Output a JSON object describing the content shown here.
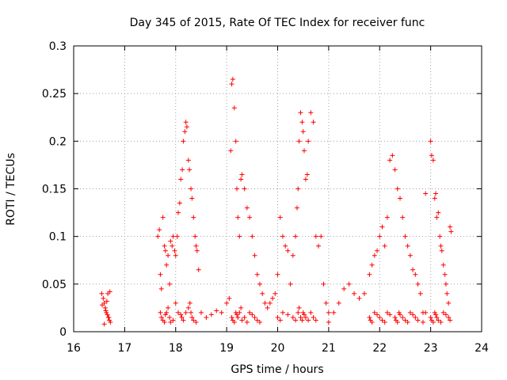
{
  "chart_data": {
    "type": "scatter",
    "title": "Day 345 of 2015, Rate Of TEC Index for receiver func",
    "xlabel": "GPS time / hours",
    "ylabel": "ROTI / TECUs",
    "xlim": [
      16,
      24
    ],
    "ylim": [
      0,
      0.3
    ],
    "x_ticks": [
      "16",
      "17",
      "18",
      "19",
      "20",
      "21",
      "22",
      "23",
      "24"
    ],
    "y_ticks": [
      "0",
      "0.05",
      "0.1",
      "0.15",
      "0.2",
      "0.25",
      "0.3"
    ],
    "grid": true,
    "marker": "plus",
    "color": "#ff0000",
    "series": [
      {
        "x": [
          16.55,
          16.58,
          16.6,
          16.62,
          16.64,
          16.66,
          16.68,
          16.7,
          16.72,
          16.6,
          16.63,
          16.67,
          16.71,
          16.56,
          16.65,
          16.69,
          17.65,
          17.68,
          17.7,
          17.72,
          17.75,
          17.78,
          17.8,
          17.82,
          17.85,
          17.88,
          17.9,
          17.93,
          17.95,
          17.98,
          18.0,
          18.03,
          18.05,
          18.08,
          18.1,
          18.13,
          18.15,
          18.18,
          18.2,
          18.22,
          18.25,
          18.27,
          18.3,
          18.32,
          18.35,
          18.38,
          18.4,
          18.42,
          18.45,
          17.7,
          17.72,
          17.75,
          17.78,
          17.8,
          17.82,
          17.85,
          17.88,
          17.9,
          17.95,
          18.0,
          18.05,
          18.1,
          18.12,
          18.15,
          18.2,
          18.25,
          18.28,
          18.3,
          18.32,
          18.35,
          18.4,
          18.5,
          18.6,
          18.7,
          18.8,
          18.9,
          19.0,
          19.05,
          19.08,
          19.1,
          19.12,
          19.15,
          19.18,
          19.2,
          19.22,
          19.25,
          19.28,
          19.3,
          19.35,
          19.4,
          19.45,
          19.5,
          19.55,
          19.6,
          19.65,
          19.7,
          19.75,
          19.8,
          19.85,
          19.9,
          19.1,
          19.12,
          19.15,
          19.18,
          19.2,
          19.22,
          19.25,
          19.28,
          19.3,
          19.35,
          19.4,
          19.45,
          19.5,
          19.55,
          19.6,
          19.65,
          19.95,
          20.0,
          20.05,
          20.1,
          20.15,
          20.2,
          20.25,
          20.3,
          20.35,
          20.38,
          20.4,
          20.42,
          20.45,
          20.48,
          20.5,
          20.52,
          20.55,
          20.58,
          20.6,
          20.65,
          20.7,
          20.75,
          20.8,
          20.85,
          20.9,
          20.95,
          21.0,
          20.0,
          20.05,
          20.1,
          20.2,
          20.3,
          20.35,
          20.4,
          20.42,
          20.45,
          20.48,
          20.5,
          20.52,
          20.55,
          20.6,
          20.65,
          20.7,
          20.75,
          21.0,
          21.1,
          21.2,
          21.3,
          21.4,
          21.5,
          21.6,
          21.7,
          21.8,
          21.85,
          21.9,
          21.95,
          22.0,
          22.05,
          22.1,
          22.15,
          22.2,
          22.25,
          22.3,
          22.35,
          22.4,
          22.45,
          22.5,
          22.55,
          22.6,
          22.65,
          22.7,
          22.75,
          22.8,
          22.85,
          22.9,
          21.8,
          21.82,
          21.85,
          21.9,
          21.95,
          22.0,
          22.05,
          22.1,
          22.15,
          22.2,
          22.3,
          22.32,
          22.35,
          22.38,
          22.4,
          22.45,
          22.5,
          22.55,
          22.6,
          22.65,
          22.7,
          22.75,
          22.85,
          22.9,
          23.0,
          23.02,
          23.05,
          23.08,
          23.1,
          23.12,
          23.15,
          23.18,
          23.2,
          23.22,
          23.25,
          23.28,
          23.3,
          23.32,
          23.35,
          23.38,
          23.4,
          23.0,
          23.02,
          23.05,
          23.08,
          23.1,
          23.12,
          23.15,
          23.2,
          23.25,
          23.3,
          23.35,
          23.38
        ],
        "y": [
          0.04,
          0.035,
          0.03,
          0.025,
          0.02,
          0.018,
          0.015,
          0.012,
          0.01,
          0.008,
          0.022,
          0.04,
          0.042,
          0.028,
          0.032,
          0.015,
          0.1,
          0.107,
          0.06,
          0.045,
          0.12,
          0.09,
          0.085,
          0.07,
          0.08,
          0.05,
          0.095,
          0.09,
          0.1,
          0.085,
          0.08,
          0.1,
          0.125,
          0.135,
          0.16,
          0.17,
          0.2,
          0.21,
          0.22,
          0.215,
          0.18,
          0.17,
          0.15,
          0.14,
          0.12,
          0.1,
          0.09,
          0.085,
          0.065,
          0.02,
          0.015,
          0.012,
          0.01,
          0.018,
          0.02,
          0.025,
          0.015,
          0.01,
          0.012,
          0.03,
          0.02,
          0.018,
          0.015,
          0.012,
          0.02,
          0.025,
          0.03,
          0.02,
          0.015,
          0.012,
          0.01,
          0.02,
          0.015,
          0.018,
          0.022,
          0.02,
          0.03,
          0.035,
          0.19,
          0.26,
          0.265,
          0.235,
          0.2,
          0.15,
          0.12,
          0.1,
          0.16,
          0.165,
          0.15,
          0.13,
          0.12,
          0.1,
          0.08,
          0.06,
          0.05,
          0.04,
          0.03,
          0.025,
          0.03,
          0.035,
          0.015,
          0.012,
          0.01,
          0.02,
          0.018,
          0.015,
          0.02,
          0.025,
          0.012,
          0.015,
          0.01,
          0.02,
          0.018,
          0.015,
          0.012,
          0.01,
          0.04,
          0.06,
          0.12,
          0.1,
          0.09,
          0.085,
          0.05,
          0.08,
          0.1,
          0.13,
          0.15,
          0.2,
          0.23,
          0.22,
          0.21,
          0.19,
          0.16,
          0.165,
          0.2,
          0.23,
          0.22,
          0.1,
          0.09,
          0.1,
          0.05,
          0.03,
          0.02,
          0.015,
          0.012,
          0.02,
          0.018,
          0.015,
          0.012,
          0.02,
          0.025,
          0.015,
          0.012,
          0.02,
          0.018,
          0.015,
          0.012,
          0.02,
          0.015,
          0.012,
          0.01,
          0.02,
          0.03,
          0.045,
          0.05,
          0.04,
          0.035,
          0.04,
          0.06,
          0.07,
          0.08,
          0.085,
          0.1,
          0.11,
          0.09,
          0.12,
          0.18,
          0.185,
          0.17,
          0.15,
          0.14,
          0.12,
          0.1,
          0.09,
          0.08,
          0.065,
          0.06,
          0.05,
          0.04,
          0.02,
          0.145,
          0.015,
          0.012,
          0.01,
          0.02,
          0.018,
          0.015,
          0.012,
          0.01,
          0.02,
          0.018,
          0.015,
          0.012,
          0.01,
          0.02,
          0.018,
          0.015,
          0.012,
          0.01,
          0.02,
          0.018,
          0.015,
          0.012,
          0.01,
          0.02,
          0.2,
          0.185,
          0.18,
          0.14,
          0.145,
          0.12,
          0.125,
          0.1,
          0.09,
          0.085,
          0.07,
          0.06,
          0.05,
          0.04,
          0.03,
          0.11,
          0.105,
          0.015,
          0.012,
          0.01,
          0.02,
          0.018,
          0.015,
          0.012,
          0.01,
          0.02,
          0.018,
          0.015,
          0.012
        ]
      }
    ]
  }
}
